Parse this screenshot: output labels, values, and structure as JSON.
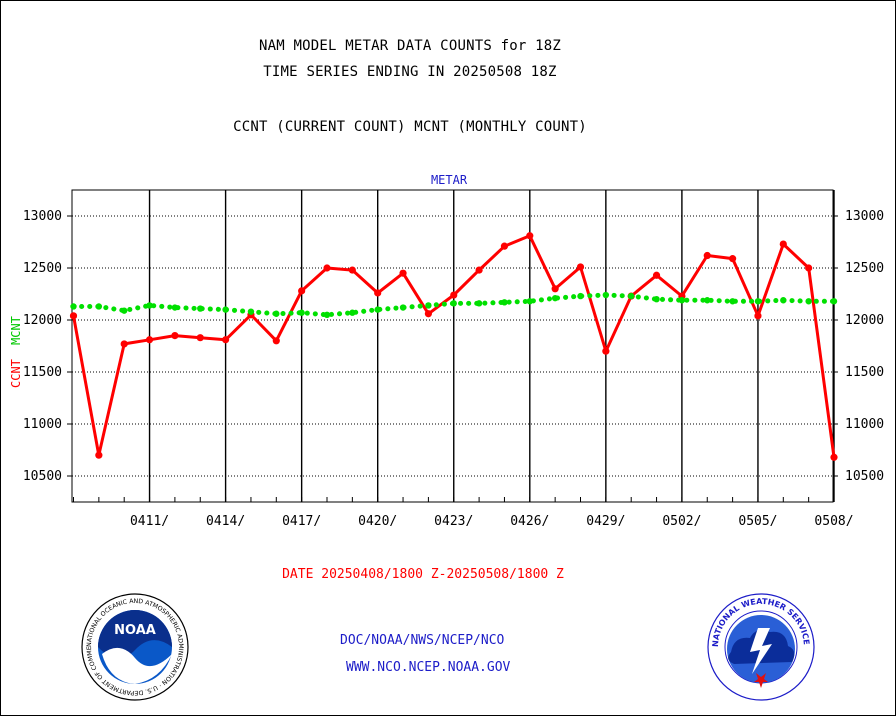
{
  "header": {
    "line1": "NAM MODEL METAR DATA COUNTS for 18Z",
    "line2": "TIME SERIES ENDING IN 20250508 18Z",
    "line3": "CCNT (CURRENT COUNT) MCNT (MONTHLY COUNT)"
  },
  "footer": {
    "org": "DOC/NOAA/NWS/NCEP/NCO",
    "url": "WWW.NCO.NCEP.NOAA.GOV"
  },
  "logos": {
    "left_name": "NOAA",
    "left_ring_text": "NATIONAL OCEANIC AND ATMOSPHERIC ADMINISTRATION · U.S. DEPARTMENT OF COMMERCE",
    "right_ring_text": "NATIONAL WEATHER SERVICE"
  },
  "chart_data": {
    "type": "line",
    "title": "METAR",
    "xlabel": "DATE 20250408/1800 Z-20250508/1800 Z",
    "ylabel_left": "CCNT",
    "ylabel_right": "MCNT",
    "x": [
      "0408",
      "0409",
      "0410",
      "0411",
      "0412",
      "0413",
      "0414",
      "0415",
      "0416",
      "0417",
      "0418",
      "0419",
      "0420",
      "0421",
      "0422",
      "0423",
      "0424",
      "0425",
      "0426",
      "0427",
      "0428",
      "0429",
      "0430",
      "0501",
      "0502",
      "0503",
      "0504",
      "0505",
      "0506",
      "0507",
      "0508"
    ],
    "x_tick_labels": [
      "0411/",
      "0414/",
      "0417/",
      "0420/",
      "0423/",
      "0426/",
      "0429/",
      "0502/",
      "0505/",
      "0508/"
    ],
    "x_tick_index": [
      3,
      6,
      9,
      12,
      15,
      18,
      21,
      24,
      27,
      30
    ],
    "ylim": [
      10250,
      13250
    ],
    "y_ticks": [
      10500,
      11000,
      11500,
      12000,
      12500,
      13000
    ],
    "grid": true,
    "series": [
      {
        "name": "CCNT",
        "color": "#ff0000",
        "style": "solid",
        "values": [
          12040,
          10700,
          11770,
          11810,
          11850,
          11830,
          11810,
          12050,
          11800,
          12280,
          12500,
          12480,
          12260,
          12450,
          12060,
          12240,
          12480,
          12710,
          12810,
          12300,
          12510,
          11700,
          12230,
          12430,
          12230,
          12620,
          12590,
          12040,
          12730,
          12500,
          10680
        ]
      },
      {
        "name": "MCNT",
        "color": "#00e000",
        "style": "dotted",
        "values": [
          12130,
          12130,
          12090,
          12140,
          12120,
          12110,
          12100,
          12080,
          12060,
          12070,
          12050,
          12070,
          12100,
          12120,
          12140,
          12160,
          12160,
          12170,
          12180,
          12210,
          12230,
          12240,
          12230,
          12200,
          12190,
          12190,
          12180,
          12180,
          12190,
          12180,
          12180
        ]
      }
    ],
    "colors": {
      "axis": "#000000",
      "title": "#1c1cc8",
      "xlabel": "#ff0000"
    }
  }
}
